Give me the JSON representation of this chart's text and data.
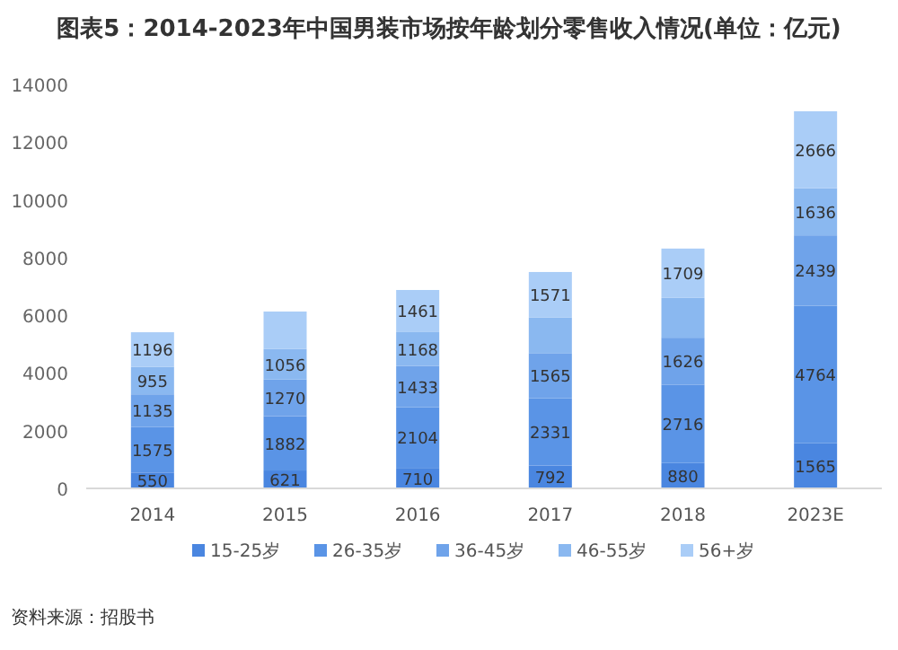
{
  "chart_data": {
    "type": "bar",
    "stacked": true,
    "title": "图表5：2014-2023年中国男装市场按年龄划分零售收入情况(单位：亿元)",
    "categories": [
      "2014",
      "2015",
      "2016",
      "2017",
      "2018",
      "2023E"
    ],
    "series": [
      {
        "name": "15-25岁",
        "color": "#4a86e0",
        "values": [
          550,
          621,
          710,
          792,
          880,
          1565
        ]
      },
      {
        "name": "26-35岁",
        "color": "#5a94e6",
        "values": [
          1575,
          1882,
          2104,
          2331,
          2716,
          4764
        ]
      },
      {
        "name": "36-45岁",
        "color": "#6fa3ea",
        "values": [
          1135,
          1270,
          1433,
          1565,
          1626,
          2439
        ]
      },
      {
        "name": "46-55岁",
        "color": "#8ab8f0",
        "values": [
          955,
          1056,
          1168,
          1240,
          1380,
          1636
        ],
        "value_labels": [
          "955",
          "1056",
          "1168",
          null,
          null,
          "1636"
        ]
      },
      {
        "name": "56+岁",
        "color": "#aacdf7",
        "values": [
          1196,
          1300,
          1461,
          1571,
          1709,
          2666
        ],
        "value_labels": [
          "1196",
          null,
          "1461",
          "1571",
          "1709",
          "2666"
        ]
      }
    ],
    "data_labels": true,
    "ylim": [
      0,
      14000
    ],
    "yticks": [
      0,
      2000,
      4000,
      6000,
      8000,
      10000,
      12000,
      14000
    ],
    "grid": false,
    "legend": "bottom",
    "annotations": [
      "资料来源：招股书"
    ]
  }
}
